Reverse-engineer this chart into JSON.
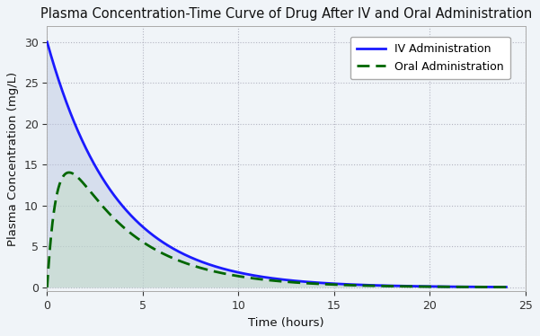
{
  "title": "Plasma Concentration-Time Curve of Drug After IV and Oral Administration",
  "xlabel": "Time (hours)",
  "ylabel": "Plasma Concentration (mg/L)",
  "xlim": [
    0,
    25
  ],
  "ylim": [
    -0.5,
    32
  ],
  "iv_label": "IV Administration",
  "oral_label": "Oral Administration",
  "iv_color": "#1a1aff",
  "oral_color": "#006600",
  "iv_fill_color": "#b8c4e0",
  "oral_fill_color": "#c0dcc0",
  "iv_fill_alpha": 0.45,
  "oral_fill_alpha": 0.45,
  "iv_C0": 30.0,
  "iv_ke": 0.28,
  "oral_Cmax_factor": 22.5,
  "oral_ka": 2.0,
  "oral_ke": 0.28,
  "t_max": 24,
  "grid_color": "#9999aa",
  "grid_alpha": 0.7,
  "background_color": "#f0f4f8",
  "legend_fontsize": 9,
  "title_fontsize": 10.5,
  "axis_label_fontsize": 9.5,
  "tick_fontsize": 9,
  "iv_linewidth": 2.0,
  "oral_linewidth": 2.0,
  "yticks": [
    0,
    5,
    10,
    15,
    20,
    25,
    30
  ],
  "xticks": [
    0,
    5,
    10,
    15,
    20,
    25
  ]
}
